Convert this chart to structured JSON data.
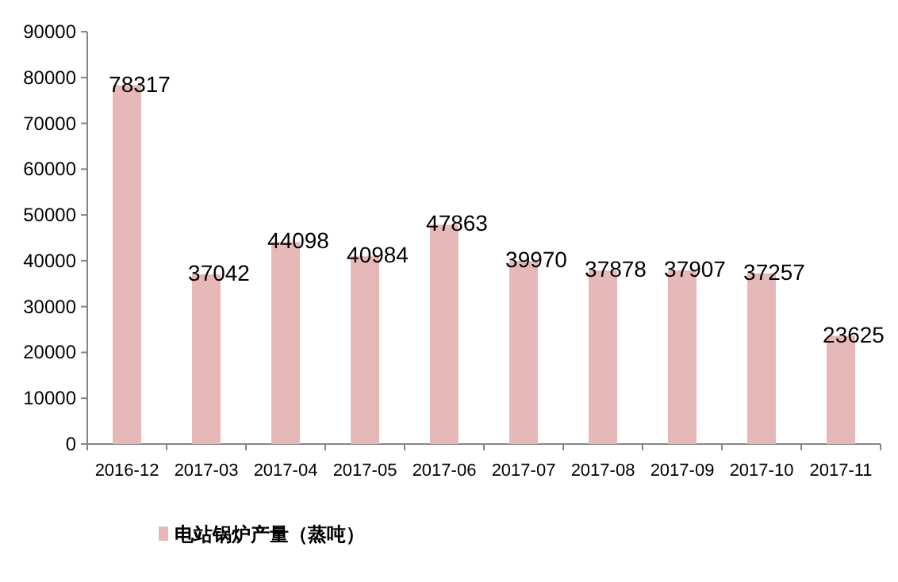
{
  "chart_data": {
    "type": "bar",
    "categories": [
      "2016-12",
      "2017-03",
      "2017-04",
      "2017-05",
      "2017-06",
      "2017-07",
      "2017-08",
      "2017-09",
      "2017-10",
      "2017-11"
    ],
    "series": [
      {
        "name": "电站锅炉产量（蒸吨）",
        "color": "#e6b9b8",
        "values": [
          78317,
          37042,
          44098,
          40984,
          47863,
          39970,
          37878,
          37907,
          37257,
          23625
        ]
      }
    ],
    "ylim": [
      0,
      90000
    ],
    "yticks": [
      0,
      10000,
      20000,
      30000,
      40000,
      50000,
      60000,
      70000,
      80000,
      90000
    ],
    "data_labels": true,
    "legend": "bottom left"
  }
}
